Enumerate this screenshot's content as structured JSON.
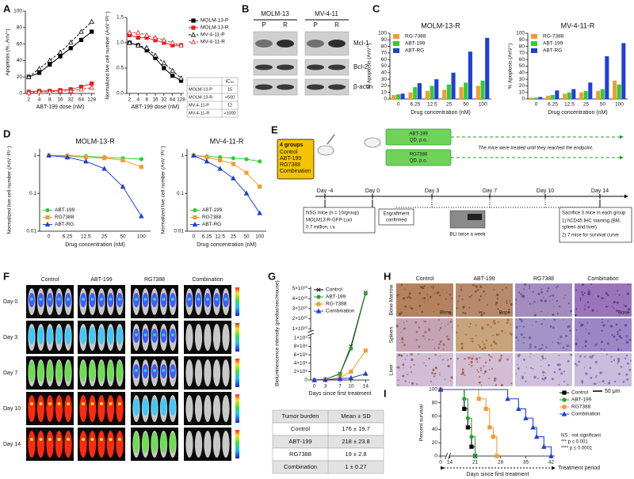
{
  "panel_labels": [
    "A",
    "B",
    "C",
    "D",
    "E",
    "F",
    "G",
    "H",
    "I"
  ],
  "chart_data": [
    {
      "type": "line",
      "ylabel": "Apoptosis (%, AnV⁺)",
      "xlabel": "ABT-199 dose (nM)",
      "x": [
        2,
        4,
        8,
        16,
        32,
        64,
        128
      ],
      "xlog": true,
      "xlim": [
        1.6,
        160
      ],
      "xticks": [
        2,
        4,
        8,
        16,
        32,
        64,
        128
      ],
      "ylim": [
        0,
        100
      ],
      "yticks": [
        0,
        20,
        40,
        60,
        80,
        100
      ],
      "series": [
        {
          "color": "#000000",
          "marker": "square",
          "filled": true,
          "dashed": false,
          "values": [
            20,
            25,
            35,
            45,
            55,
            65,
            75
          ]
        },
        {
          "color": "#e02020",
          "marker": "square",
          "filled": true,
          "dashed": false,
          "values": [
            2,
            3,
            3,
            4,
            5,
            8,
            12
          ]
        },
        {
          "color": "#000000",
          "marker": "triangle",
          "filled": false,
          "dashed": true,
          "values": [
            20,
            30,
            40,
            50,
            62,
            75,
            87
          ]
        },
        {
          "color": "#e02020",
          "marker": "triangle",
          "filled": false,
          "dashed": true,
          "values": [
            1,
            2,
            2,
            3,
            3,
            5,
            7
          ]
        }
      ]
    },
    {
      "type": "line",
      "ylabel": "Normalized live cell number (AnV⁻PI⁻)",
      "xlabel": "ABT-199 dose (nM)",
      "x": [
        2,
        4,
        8,
        16,
        32,
        64,
        128
      ],
      "xlog": true,
      "xlim": [
        1.6,
        160
      ],
      "xticks": [
        2,
        4,
        8,
        16,
        32,
        64,
        128
      ],
      "ylim": [
        0,
        1.5
      ],
      "yticks": [
        {
          "value": 0,
          "label": "0.0"
        },
        0.5,
        {
          "value": 1,
          "label": "1.0"
        },
        1.5
      ],
      "legend": "right",
      "series": [
        {
          "name": "MOLM-13-P",
          "color": "#000000",
          "marker": "square",
          "filled": true,
          "dashed": false,
          "values": [
            1.0,
            0.95,
            0.85,
            0.7,
            0.5,
            0.35,
            0.25
          ]
        },
        {
          "name": "MOLM-13-R",
          "color": "#e02020",
          "marker": "square",
          "filled": true,
          "dashed": false,
          "values": [
            1.15,
            1.1,
            1.1,
            1.05,
            1.0,
            0.95,
            0.95
          ]
        },
        {
          "name": "MV-4-11-P",
          "color": "#000000",
          "marker": "triangle",
          "filled": false,
          "dashed": true,
          "values": [
            1.0,
            0.95,
            0.9,
            0.75,
            0.6,
            0.45,
            0.3
          ]
        },
        {
          "name": "MV-4-11-R",
          "color": "#e02020",
          "marker": "triangle",
          "filled": false,
          "dashed": true,
          "values": [
            1.2,
            1.2,
            1.15,
            1.1,
            1.05,
            1.0,
            0.95
          ]
        }
      ]
    },
    {
      "type": "bar",
      "title": "MOLM-13-R",
      "ylabel": "% Apoptosis (AnV⁺)",
      "xlabel": "Drug concentration (nM)",
      "categories": [
        "0",
        "6.25",
        "12.5",
        "25",
        "50",
        "100"
      ],
      "ylim": [
        0,
        100
      ],
      "yticks": [
        0,
        10,
        20,
        30,
        40,
        50,
        60,
        70,
        80,
        90,
        100
      ],
      "legend": "top-left",
      "series": [
        {
          "name": "RG-7388",
          "color": "#f39c33",
          "values": [
            6,
            10,
            12,
            14,
            18,
            20
          ]
        },
        {
          "name": "ABT-199",
          "color": "#33cc33",
          "values": [
            7,
            18,
            20,
            22,
            25,
            28
          ]
        },
        {
          "name": "ABT-RG",
          "color": "#1f3fd6",
          "values": [
            8,
            24,
            30,
            40,
            72,
            93
          ]
        }
      ]
    },
    {
      "type": "bar",
      "title": "MV-4-11-R",
      "ylabel": "% Apoptosis (AnV⁺)",
      "xlabel": "Drug concentration (nM)",
      "categories": [
        "0",
        "6.25",
        "12.5",
        "25",
        "50",
        "100"
      ],
      "ylim": [
        0,
        100
      ],
      "yticks": [
        0,
        10,
        20,
        30,
        40,
        50,
        60,
        70,
        80,
        90,
        100
      ],
      "legend": "top-left",
      "series": [
        {
          "name": "RG-7388",
          "color": "#f39c33",
          "values": [
            2,
            5,
            8,
            10,
            12,
            28
          ]
        },
        {
          "name": "ABT-199",
          "color": "#33cc33",
          "values": [
            2,
            6,
            10,
            12,
            15,
            22
          ]
        },
        {
          "name": "ABT-RG",
          "color": "#1f3fd6",
          "values": [
            3,
            13,
            15,
            25,
            65,
            85
          ]
        }
      ]
    },
    {
      "type": "line",
      "title": "MOLM-13-R",
      "ylabel": "Normalized live cell number (AnV⁻PI⁻)",
      "xlabel": "Drug concentration (nM)",
      "categories": [
        "0",
        "6.25",
        "12.5",
        "25",
        "50",
        "100"
      ],
      "ylog": true,
      "ylim": [
        0.01,
        1.5
      ],
      "yticks": [
        0.01,
        0.1,
        1
      ],
      "legend": "bottom-left",
      "series": [
        {
          "name": "ABT-199",
          "color": "#33cc33",
          "marker": "circle",
          "filled": true,
          "dashed": false,
          "values": [
            1,
            1,
            0.95,
            0.9,
            0.85,
            0.8
          ]
        },
        {
          "name": "RG7388",
          "color": "#f39c33",
          "marker": "square",
          "filled": true,
          "dashed": false,
          "values": [
            1,
            0.95,
            0.9,
            0.85,
            0.75,
            0.5
          ]
        },
        {
          "name": "ABT-RG",
          "color": "#1f3fd6",
          "marker": "triangle",
          "filled": true,
          "dashed": false,
          "values": [
            1,
            0.9,
            0.7,
            0.45,
            0.15,
            0.025
          ]
        }
      ]
    },
    {
      "type": "line",
      "title": "MV-4-11-R",
      "ylabel": "Normalized live cell number (AnV⁻PI⁻)",
      "xlabel": "Drug concentration (nM)",
      "categories": [
        "0",
        "6.25",
        "12.5",
        "25",
        "50",
        "100"
      ],
      "ylog": true,
      "ylim": [
        0.01,
        1.5
      ],
      "yticks": [
        0.01,
        0.1,
        1
      ],
      "legend": "bottom-left",
      "series": [
        {
          "name": "ABT-199",
          "color": "#33cc33",
          "marker": "circle",
          "filled": true,
          "dashed": false,
          "values": [
            1,
            0.95,
            0.9,
            0.85,
            0.8,
            0.7
          ]
        },
        {
          "name": "RG7388",
          "color": "#f39c33",
          "marker": "square",
          "filled": true,
          "dashed": false,
          "values": [
            1,
            0.9,
            0.75,
            0.6,
            0.35,
            0.15
          ]
        },
        {
          "name": "ABT-RG",
          "color": "#1f3fd6",
          "marker": "triangle",
          "filled": true,
          "dashed": false,
          "values": [
            1,
            0.7,
            0.45,
            0.25,
            0.1,
            0.03
          ]
        }
      ]
    },
    {
      "type": "line",
      "ylabel": "Bioluminescence intensity (photos/sec/mouse)",
      "xlabel": "Days since first treatment",
      "x": [
        0,
        3,
        7,
        10,
        14
      ],
      "xlim": [
        -1,
        15
      ],
      "xticks": [
        0,
        3,
        7,
        10,
        14
      ],
      "ylim": [
        0,
        52000000000.0
      ],
      "ybreak": [
        1000000000.0,
        10000000000.0
      ],
      "yticks": [
        0,
        {
          "value": 200000000.0,
          "label": "2×10⁸"
        },
        {
          "value": 400000000.0,
          "label": "4×10⁸"
        },
        {
          "value": 600000000.0,
          "label": "6×10⁸"
        },
        {
          "value": 800000000.0,
          "label": "8×10⁸"
        },
        {
          "value": 1000000000.0,
          "label": "1×10⁹"
        },
        {
          "value": 10000000000.0,
          "label": "1×10¹⁰"
        },
        {
          "value": 20000000000.0,
          "label": "2×10¹⁰"
        },
        {
          "value": 30000000000.0,
          "label": "3×10¹⁰"
        },
        {
          "value": 40000000000.0,
          "label": "4×10¹⁰"
        },
        {
          "value": 50000000000.0,
          "label": "5×10¹⁰"
        }
      ],
      "legend": "top-left",
      "series": [
        {
          "name": "Control",
          "color": "#000000",
          "marker": "cross",
          "filled": true,
          "dashed": false,
          "values": [
            0,
            20000000.0,
            150000000.0,
            800000000.0,
            46000000000.0
          ]
        },
        {
          "name": "ABT-199",
          "color": "#2e9e2e",
          "marker": "circle",
          "filled": true,
          "dashed": false,
          "values": [
            0,
            20000000.0,
            140000000.0,
            750000000.0,
            45000000000.0
          ]
        },
        {
          "name": "RG-7388",
          "color": "#f39c33",
          "marker": "square",
          "filled": true,
          "dashed": false,
          "values": [
            0,
            10000000.0,
            50000000.0,
            200000000.0,
            700000000.0
          ]
        },
        {
          "name": "Combination",
          "color": "#1f3fd6",
          "marker": "triangle",
          "filled": true,
          "dashed": false,
          "values": [
            0,
            10000000.0,
            30000000.0,
            50000000.0,
            150000000.0
          ]
        }
      ]
    },
    {
      "type": "survival",
      "ylabel": "Percent survival",
      "xlabel": "Days since first treatment",
      "period_label": "Treatment period",
      "xlim": [
        0,
        43
      ],
      "xbreak": [
        1,
        14
      ],
      "xticks": [
        0,
        14,
        21,
        28,
        35,
        42
      ],
      "ylim": [
        0,
        100
      ],
      "yticks": [
        0,
        20,
        40,
        60,
        80,
        100
      ],
      "legend": "right",
      "annotations": [
        "NS : not significant",
        "***   p ≤ 0.001",
        "****  p ≤ 0.0001"
      ],
      "series": [
        {
          "name": "Control",
          "color": "#000000",
          "marker": "square",
          "filled": true,
          "x": [
            0,
            18,
            19,
            20,
            21
          ],
          "values": [
            100,
            71,
            43,
            14,
            0
          ]
        },
        {
          "name": "ABT-199",
          "color": "#2e9e2e",
          "marker": "circle",
          "filled": true,
          "x": [
            0,
            18,
            19,
            20,
            21
          ],
          "values": [
            100,
            86,
            57,
            29,
            0
          ]
        },
        {
          "name": "RG7388",
          "color": "#f39c33",
          "marker": "square",
          "filled": true,
          "x": [
            0,
            22,
            24,
            25,
            26,
            27
          ],
          "values": [
            100,
            86,
            71,
            43,
            29,
            0
          ]
        },
        {
          "name": "Combination",
          "color": "#1f3fd6",
          "marker": "triangle",
          "filled": true,
          "x": [
            0,
            30,
            33,
            35,
            37,
            38,
            40,
            42
          ],
          "values": [
            100,
            86,
            71,
            57,
            43,
            29,
            14,
            0
          ]
        }
      ]
    }
  ],
  "ic50_table": {
    "header": "IC₅₀",
    "rows": [
      [
        "MOLM-13-P",
        "15"
      ],
      [
        "MOLM-13-R",
        ">500"
      ],
      [
        "MV-4-11-P",
        "12"
      ],
      [
        "MV-4-11-R",
        ">1000"
      ]
    ]
  },
  "western_blot": {
    "cell_lines": [
      "MOLM-13",
      "MV-4-11"
    ],
    "lanes": [
      "P",
      "R",
      "P",
      "R"
    ],
    "proteins": [
      "Mcl-1",
      "Bcl-2",
      "β-actin"
    ]
  },
  "schematic": {
    "groups_title": "4 groups",
    "groups": [
      "Control",
      "ABT-199",
      "RG7388",
      "Combination"
    ],
    "days": [
      "Day -4",
      "Day 0",
      "Day 3",
      "Day 7",
      "Day 10",
      "Day 14"
    ],
    "treatments": [
      [
        "ABT-199",
        "QD, p.o."
      ],
      [
        "RG7388",
        "QD, p.o."
      ]
    ],
    "endpoint_note": "The mice were treated until they reached the endpoint.",
    "injection": [
      "NSG mice (n = 10/group)",
      "MOLM13-R-GFP-Luci",
      "0.7 million, i.v."
    ],
    "engraftment": [
      "Engraftment",
      "confirmed"
    ],
    "bli": "BLI twice a week",
    "sacrifice": [
      "Sacrifice 3 mice in each group",
      "1)   hCD45 IHC staining (BM,",
      "      spleen and liver)",
      "2)   7 mice for survival curve"
    ]
  },
  "bli_images": {
    "columns": [
      "Control",
      "ABT-199",
      "RG7388",
      "Combination"
    ],
    "rows": [
      "Day 0",
      "Day 3",
      "Day 7",
      "Day 10",
      "Day 14"
    ]
  },
  "tumor_table": {
    "header": [
      "Tumor burden",
      "Mean ± SD"
    ],
    "rows": [
      [
        "Control",
        "176 ± 19.7"
      ],
      [
        "ABT-199",
        "218 ± 23.8"
      ],
      [
        "RG7388",
        "19 ± 2.8"
      ],
      [
        "Combination",
        "1 ± 0.27"
      ]
    ]
  },
  "histology": {
    "columns": [
      "Control",
      "ABT-199",
      "RG7388",
      "Combination"
    ],
    "rows": [
      "Bone Marrow",
      "Spleen",
      "Liver"
    ],
    "bone_label": "Bone",
    "scale_bar": "50 μm"
  }
}
